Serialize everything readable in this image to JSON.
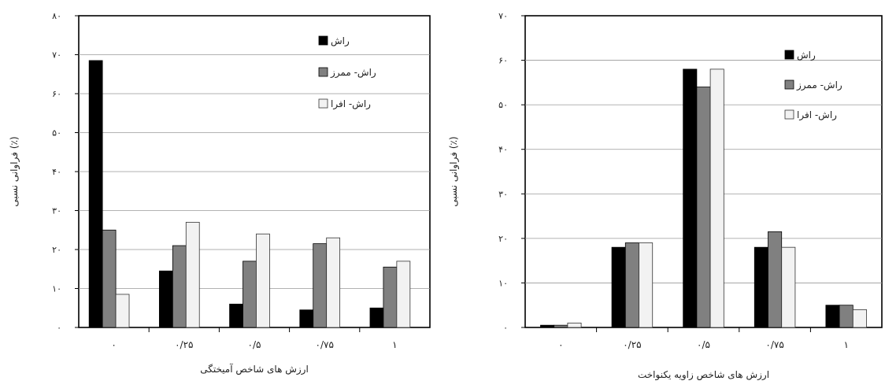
{
  "chart_data": [
    {
      "type": "bar",
      "xlabel": "ارزش های شاخص آمیختگی",
      "ylabel": "فراوانی نسبی (٪)",
      "ylim": [
        0,
        80
      ],
      "yticks": [
        "٠",
        "١٠",
        "٢٠",
        "٣٠",
        "۴٠",
        "۵٠",
        "۶٠",
        "٧٠",
        "٨٠"
      ],
      "categories": [
        "٠",
        "٠/٢۵",
        "٠/۵",
        "٠/٧۵",
        "١"
      ],
      "series": [
        {
          "name": "راش",
          "color": "#000000",
          "values": [
            68.5,
            14.5,
            6,
            4.5,
            5
          ]
        },
        {
          "name": "راش- ممرز",
          "color": "#808080",
          "values": [
            25,
            21,
            17,
            21.5,
            15.5
          ]
        },
        {
          "name": "راش- افرا",
          "color": "#f2f2f2",
          "values": [
            8.5,
            27,
            24,
            23,
            17
          ]
        }
      ],
      "grid": true,
      "legend_position": "top-right"
    },
    {
      "type": "bar",
      "xlabel": "ارزش های شاخص زاویه یکنواخت",
      "ylabel": "فراوانی نسبی (٪)",
      "ylim": [
        0,
        70
      ],
      "yticks": [
        "٠",
        "١٠",
        "٢٠",
        "٣٠",
        "۴٠",
        "۵٠",
        "۶٠",
        "٧٠"
      ],
      "categories": [
        "٠",
        "٠/٢۵",
        "٠/۵",
        "٠/٧۵",
        "١"
      ],
      "series": [
        {
          "name": "راش",
          "color": "#000000",
          "values": [
            0.5,
            18,
            58,
            18,
            5
          ]
        },
        {
          "name": "راش- ممرز",
          "color": "#808080",
          "values": [
            0.5,
            19,
            54,
            21.5,
            5
          ]
        },
        {
          "name": "راش- افرا",
          "color": "#f2f2f2",
          "values": [
            1,
            19,
            58,
            18,
            4
          ]
        }
      ],
      "grid": true,
      "legend_position": "top-right"
    }
  ]
}
